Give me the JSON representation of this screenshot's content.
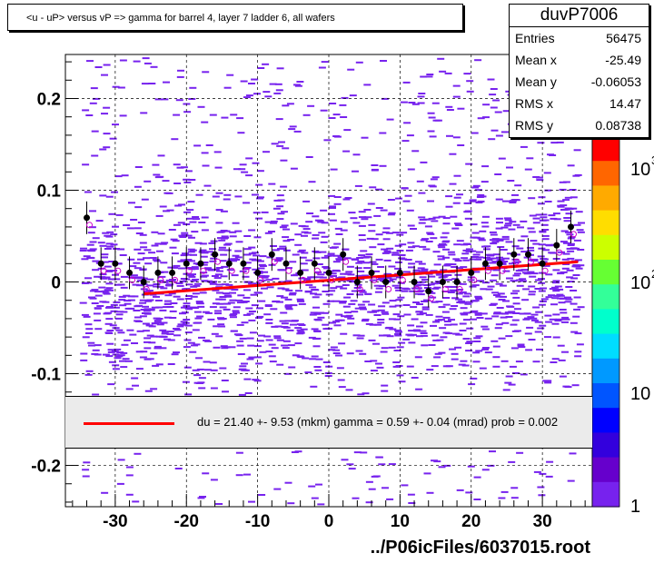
{
  "title": "<u - uP>       versus   vP =>  gamma for barrel 4, layer 7 ladder 6, all wafers",
  "stats": {
    "name": "duvP7006",
    "rows": [
      {
        "label": "Entries",
        "value": "56475"
      },
      {
        "label": "Mean x",
        "value": "-25.49"
      },
      {
        "label": "Mean y",
        "value": "-0.06053"
      },
      {
        "label": "RMS x",
        "value": "14.47"
      },
      {
        "label": "RMS y",
        "value": "0.08738"
      }
    ]
  },
  "fit_legend": "du =   21.40 +-  9.53 (mkm) gamma =    0.59 +-  0.04 (mrad) prob = 0.002",
  "footer": "../P06icFiles/6037015.root",
  "colors": {
    "scatter": "#7722ee",
    "profile_points": "#000000",
    "open_markers": "#cc00cc",
    "fit_line": "#ff0000",
    "legend_bg": "#ebebeb"
  },
  "chart_data": {
    "type": "scatter",
    "title": "<u - uP>       versus   vP =>  gamma for barrel 4, layer 7 ladder 6, all wafers",
    "xlim": [
      -37,
      37
    ],
    "ylim": [
      -0.245,
      0.248
    ],
    "x_ticks": [
      -30,
      -20,
      -10,
      0,
      10,
      20,
      30
    ],
    "x_tick_labels": [
      "-30",
      "-20",
      "-10",
      "0",
      "10",
      "20",
      "30"
    ],
    "y_ticks": [
      0.2,
      0.1,
      0,
      -0.1,
      -0.2
    ],
    "y_tick_labels": [
      "0.2",
      "0.1",
      "0",
      "-0.1",
      "-0.2"
    ],
    "grid": true,
    "colorbar": {
      "scale": "log",
      "tick_labels": [
        "1",
        "10",
        "10",
        "10"
      ],
      "exponents": [
        "",
        "",
        "2",
        "3"
      ]
    },
    "fit_line": {
      "x": [
        -26,
        35
      ],
      "y": [
        -0.013,
        0.022
      ]
    },
    "profile": {
      "x": [
        -34,
        -32,
        -30,
        -28,
        -26,
        -24,
        -22,
        -20,
        -18,
        -16,
        -14,
        -12,
        -10,
        -8,
        -6,
        -4,
        -2,
        0,
        2,
        4,
        6,
        8,
        10,
        12,
        14,
        16,
        18,
        20,
        22,
        24,
        26,
        28,
        30,
        32,
        34
      ],
      "y": [
        0.07,
        0.02,
        0.02,
        0.01,
        0.0,
        0.01,
        0.01,
        0.02,
        0.02,
        0.03,
        0.02,
        0.02,
        0.01,
        0.03,
        0.02,
        0.01,
        0.02,
        0.01,
        0.03,
        0.0,
        0.01,
        0.0,
        0.01,
        0.0,
        -0.01,
        0.0,
        0.0,
        0.01,
        0.02,
        0.02,
        0.03,
        0.03,
        0.02,
        0.04,
        0.06
      ]
    }
  }
}
